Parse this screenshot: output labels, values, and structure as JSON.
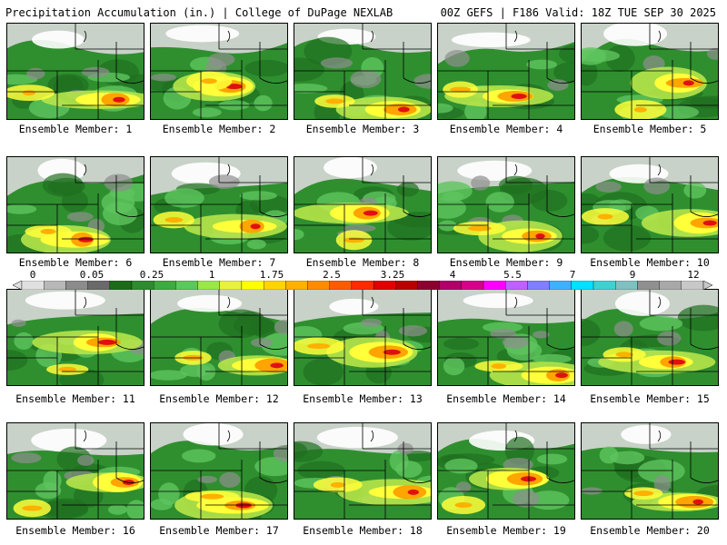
{
  "header": {
    "left_title": "Precipitation Accumulation (in.) | College of DuPage NEXLAB",
    "right_title": "00Z GEFS | F186 Valid: 18Z TUE SEP 30 2025"
  },
  "members": [
    "Ensemble Member: 1",
    "Ensemble Member: 2",
    "Ensemble Member: 3",
    "Ensemble Member: 4",
    "Ensemble Member: 5",
    "Ensemble Member: 6",
    "Ensemble Member: 7",
    "Ensemble Member: 8",
    "Ensemble Member: 9",
    "Ensemble Member: 10",
    "Ensemble Member: 11",
    "Ensemble Member: 12",
    "Ensemble Member: 13",
    "Ensemble Member: 14",
    "Ensemble Member: 15",
    "Ensemble Member: 16",
    "Ensemble Member: 17",
    "Ensemble Member: 18",
    "Ensemble Member: 19",
    "Ensemble Member: 20"
  ],
  "colorbar": {
    "ticks": [
      "0",
      "0.05",
      "0.25",
      "1",
      "1.75",
      "2.5",
      "3.25",
      "4",
      "5.5",
      "7",
      "9",
      "12"
    ],
    "colors": [
      "#e0e0e0",
      "#b8b8b8",
      "#8c8c8c",
      "#6a6a6a",
      "#1b6b1b",
      "#2e8b2e",
      "#3faa3f",
      "#5cc85c",
      "#9be64a",
      "#e8f23a",
      "#ffff00",
      "#ffd400",
      "#ffb000",
      "#ff8c00",
      "#ff5a00",
      "#ff2a00",
      "#e00000",
      "#b80000",
      "#8c0030",
      "#b0006a",
      "#d4008c",
      "#ff00ff",
      "#c060ff",
      "#8080ff",
      "#40b0ff",
      "#00e0ff",
      "#40d0d0",
      "#80c0c0",
      "#909090",
      "#a8a8a8",
      "#c8c8c8"
    ]
  }
}
